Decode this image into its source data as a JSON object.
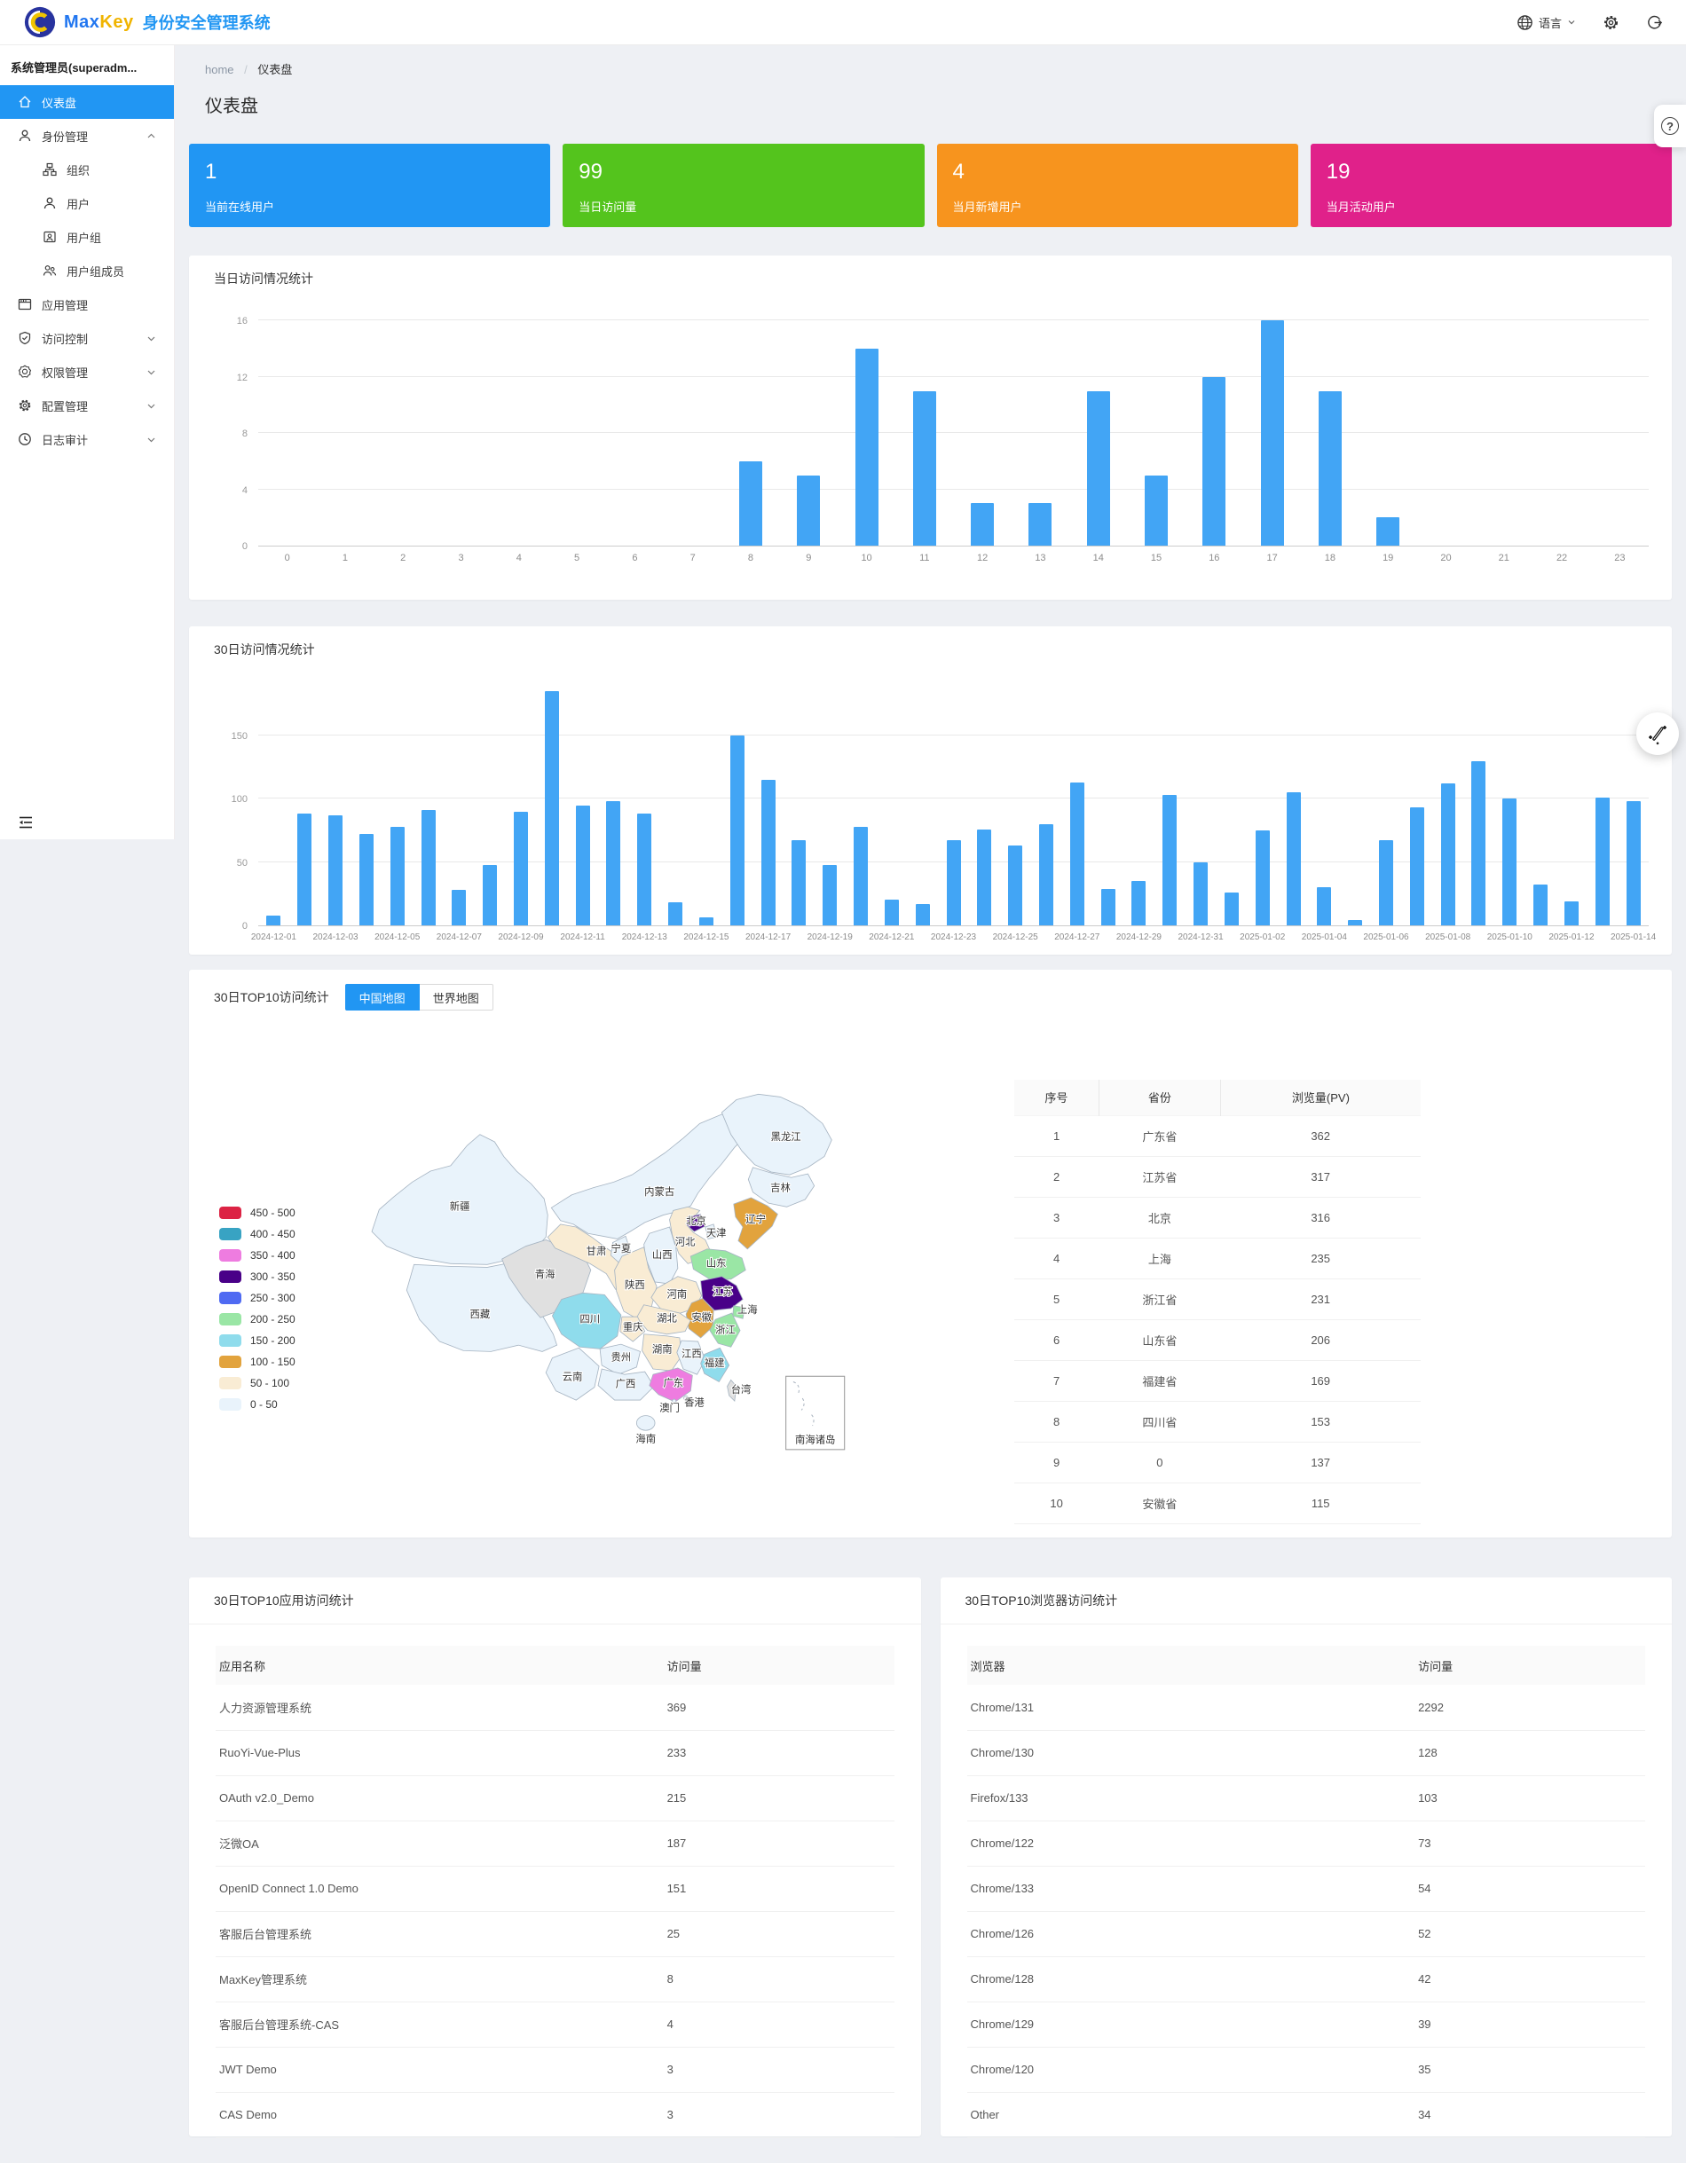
{
  "navbar": {
    "brand_max": "Max",
    "brand_key": "Key",
    "system_title": "身份安全管理系统",
    "language_label": "语言"
  },
  "sidebar": {
    "user": "系统管理员(superadm...",
    "menu": [
      {
        "label": "仪表盘",
        "active": true
      },
      {
        "label": "身份管理",
        "expanded": true
      },
      {
        "label": "组织",
        "child": true
      },
      {
        "label": "用户",
        "child": true
      },
      {
        "label": "用户组",
        "child": true
      },
      {
        "label": "用户组成员",
        "child": true
      },
      {
        "label": "应用管理"
      },
      {
        "label": "访问控制",
        "collapsed": true
      },
      {
        "label": "权限管理",
        "collapsed": true
      },
      {
        "label": "配置管理",
        "collapsed": true
      },
      {
        "label": "日志审计",
        "collapsed": true
      }
    ]
  },
  "breadcrumb": {
    "home": "home",
    "separator": "/",
    "current": "仪表盘"
  },
  "page_title": "仪表盘",
  "cards": [
    {
      "value": "1",
      "label": "当前在线用户",
      "color": "#2196f3"
    },
    {
      "value": "99",
      "label": "当日访问量",
      "color": "#54c41d"
    },
    {
      "value": "4",
      "label": "当月新增用户",
      "color": "#f7941e"
    },
    {
      "value": "19",
      "label": "当月活动用户",
      "color": "#e0218a"
    }
  ],
  "chart_data": [
    {
      "id": "hourly",
      "type": "bar",
      "title": "当日访问情况统计",
      "categories": [
        "0",
        "1",
        "2",
        "3",
        "4",
        "5",
        "6",
        "7",
        "8",
        "9",
        "10",
        "11",
        "12",
        "13",
        "14",
        "15",
        "16",
        "17",
        "18",
        "19",
        "20",
        "21",
        "22",
        "23"
      ],
      "values": [
        0,
        0,
        0,
        0,
        0,
        0,
        0,
        0,
        6,
        5,
        14,
        11,
        3,
        3,
        11,
        5,
        12,
        16,
        11,
        2,
        0,
        0,
        0,
        0
      ],
      "xlabel": "",
      "ylabel": "",
      "yticks": [
        0,
        4,
        8,
        12,
        16
      ],
      "ylim": [
        0,
        17.1
      ],
      "bar_color": "#42a5f5",
      "grid": true,
      "x_label_every": 1
    },
    {
      "id": "daily",
      "type": "bar",
      "title": "30日访问情况统计",
      "categories": [
        "2024-12-01",
        "2024-12-02",
        "2024-12-03",
        "2024-12-04",
        "2024-12-05",
        "2024-12-06",
        "2024-12-07",
        "2024-12-08",
        "2024-12-09",
        "2024-12-10",
        "2024-12-11",
        "2024-12-12",
        "2024-12-13",
        "2024-12-14",
        "2024-12-15",
        "2024-12-16",
        "2024-12-17",
        "2024-12-18",
        "2024-12-19",
        "2024-12-20",
        "2024-12-21",
        "2024-12-22",
        "2024-12-23",
        "2024-12-24",
        "2024-12-25",
        "2024-12-26",
        "2024-12-27",
        "2024-12-28",
        "2024-12-29",
        "2024-12-30",
        "2024-12-31",
        "2025-01-01",
        "2025-01-02",
        "2025-01-03",
        "2025-01-04",
        "2025-01-05",
        "2025-01-06",
        "2025-01-07",
        "2025-01-08",
        "2025-01-09",
        "2025-01-10",
        "2025-01-11",
        "2025-01-12",
        "2025-01-13",
        "2025-01-14"
      ],
      "values": [
        8,
        88,
        87,
        72,
        78,
        91,
        28,
        48,
        90,
        185,
        95,
        98,
        88,
        18,
        6,
        150,
        115,
        67,
        48,
        78,
        20,
        17,
        67,
        76,
        63,
        80,
        113,
        29,
        35,
        103,
        50,
        26,
        75,
        105,
        30,
        4,
        67,
        93,
        112,
        130,
        100,
        32,
        19,
        101,
        98
      ],
      "xlabel": "",
      "ylabel": "",
      "yticks": [
        0,
        50,
        100,
        150
      ],
      "ylim": [
        0,
        197
      ],
      "bar_color": "#42a5f5",
      "grid": true,
      "x_label_every": 2
    }
  ],
  "map": {
    "title": "30日TOP10访问统计",
    "tabs": [
      {
        "label": "中国地图",
        "active": true
      },
      {
        "label": "世界地图",
        "active": false
      }
    ],
    "inset_label": "南海诸岛",
    "no_data_color": "#e0e0e0",
    "legend": [
      {
        "range": "450 - 500",
        "color": "#dc2344"
      },
      {
        "range": "400 - 450",
        "color": "#38a3c3"
      },
      {
        "range": "350 - 400",
        "color": "#ee7ce0"
      },
      {
        "range": "300 - 350",
        "color": "#490088"
      },
      {
        "range": "250 - 300",
        "color": "#4f6af2"
      },
      {
        "range": "200 - 250",
        "color": "#9ae6a5"
      },
      {
        "range": "150 - 200",
        "color": "#8fdcec"
      },
      {
        "range": "100 - 150",
        "color": "#e2a33d"
      },
      {
        "range": "50 - 100",
        "color": "#f9ecd4"
      },
      {
        "range": "0 - 50",
        "color": "#e9f3fb"
      }
    ],
    "provinces": [
      {
        "id": "xinjiang",
        "name": "新疆",
        "bucket": "0 - 50"
      },
      {
        "id": "xizang",
        "name": "西藏",
        "bucket": "0 - 50"
      },
      {
        "id": "qinghai",
        "name": "青海",
        "bucket": "none"
      },
      {
        "id": "gansu",
        "name": "甘肃",
        "bucket": "50 - 100"
      },
      {
        "id": "neimenggu",
        "name": "内蒙古",
        "bucket": "0 - 50"
      },
      {
        "id": "heilongjiang",
        "name": "黑龙江",
        "bucket": "0 - 50"
      },
      {
        "id": "jilin",
        "name": "吉林",
        "bucket": "0 - 50"
      },
      {
        "id": "liaoning",
        "name": "辽宁",
        "bucket": "100 - 150"
      },
      {
        "id": "beijing",
        "name": "北京",
        "bucket": "300 - 350"
      },
      {
        "id": "tianjin",
        "name": "天津",
        "bucket": "0 - 50"
      },
      {
        "id": "hebei",
        "name": "河北",
        "bucket": "50 - 100"
      },
      {
        "id": "shanxi",
        "name": "山西",
        "bucket": "0 - 50"
      },
      {
        "id": "ningxia",
        "name": "宁夏",
        "bucket": "0 - 50"
      },
      {
        "id": "shaanxi",
        "name": "陕西",
        "bucket": "50 - 100"
      },
      {
        "id": "henan",
        "name": "河南",
        "bucket": "50 - 100"
      },
      {
        "id": "shandong",
        "name": "山东",
        "bucket": "200 - 250"
      },
      {
        "id": "jiangsu",
        "name": "江苏",
        "bucket": "300 - 350"
      },
      {
        "id": "anhui",
        "name": "安徽",
        "bucket": "100 - 150"
      },
      {
        "id": "shanghai",
        "name": "上海",
        "bucket": "200 - 250"
      },
      {
        "id": "zhejiang",
        "name": "浙江",
        "bucket": "200 - 250"
      },
      {
        "id": "hubei",
        "name": "湖北",
        "bucket": "50 - 100"
      },
      {
        "id": "chongqing",
        "name": "重庆",
        "bucket": "50 - 100"
      },
      {
        "id": "sichuan",
        "name": "四川",
        "bucket": "150 - 200"
      },
      {
        "id": "hunan",
        "name": "湖南",
        "bucket": "50 - 100"
      },
      {
        "id": "jiangxi",
        "name": "江西",
        "bucket": "0 - 50"
      },
      {
        "id": "fujian",
        "name": "福建",
        "bucket": "150 - 200"
      },
      {
        "id": "guizhou",
        "name": "贵州",
        "bucket": "0 - 50"
      },
      {
        "id": "yunnan",
        "name": "云南",
        "bucket": "0 - 50"
      },
      {
        "id": "guangxi",
        "name": "广西",
        "bucket": "0 - 50"
      },
      {
        "id": "guangdong",
        "name": "广东",
        "bucket": "350 - 400"
      },
      {
        "id": "hainan",
        "name": "海南",
        "bucket": "0 - 50"
      },
      {
        "id": "taiwan",
        "name": "台湾",
        "bucket": "none"
      },
      {
        "id": "hongkong",
        "name": "香港",
        "bucket": "0 - 50"
      },
      {
        "id": "macau",
        "name": "澳门",
        "bucket": "0 - 50"
      }
    ],
    "table": {
      "headers": [
        "序号",
        "省份",
        "浏览量(PV)"
      ],
      "rows": [
        [
          "1",
          "广东省",
          "362"
        ],
        [
          "2",
          "江苏省",
          "317"
        ],
        [
          "3",
          "北京",
          "316"
        ],
        [
          "4",
          "上海",
          "235"
        ],
        [
          "5",
          "浙江省",
          "231"
        ],
        [
          "6",
          "山东省",
          "206"
        ],
        [
          "7",
          "福建省",
          "169"
        ],
        [
          "8",
          "四川省",
          "153"
        ],
        [
          "9",
          "0",
          "137"
        ],
        [
          "10",
          "安徽省",
          "115"
        ]
      ]
    }
  },
  "app_table": {
    "title": "30日TOP10应用访问统计",
    "headers": [
      "应用名称",
      "访问量"
    ],
    "rows": [
      [
        "人力资源管理系统",
        "369"
      ],
      [
        "RuoYi-Vue-Plus",
        "233"
      ],
      [
        "OAuth v2.0_Demo",
        "215"
      ],
      [
        "泛微OA",
        "187"
      ],
      [
        "OpenID Connect 1.0 Demo",
        "151"
      ],
      [
        "客服后台管理系统",
        "25"
      ],
      [
        "MaxKey管理系统",
        "8"
      ],
      [
        "客服后台管理系统-CAS",
        "4"
      ],
      [
        "JWT Demo",
        "3"
      ],
      [
        "CAS Demo",
        "3"
      ]
    ]
  },
  "browser_table": {
    "title": "30日TOP10浏览器访问统计",
    "headers": [
      "浏览器",
      "访问量"
    ],
    "rows": [
      [
        "Chrome/131",
        "2292"
      ],
      [
        "Chrome/130",
        "128"
      ],
      [
        "Firefox/133",
        "103"
      ],
      [
        "Chrome/122",
        "73"
      ],
      [
        "Chrome/133",
        "54"
      ],
      [
        "Chrome/126",
        "52"
      ],
      [
        "Chrome/128",
        "42"
      ],
      [
        "Chrome/129",
        "39"
      ],
      [
        "Chrome/120",
        "35"
      ],
      [
        "Other",
        "34"
      ]
    ]
  },
  "floating": {
    "help": "?"
  }
}
